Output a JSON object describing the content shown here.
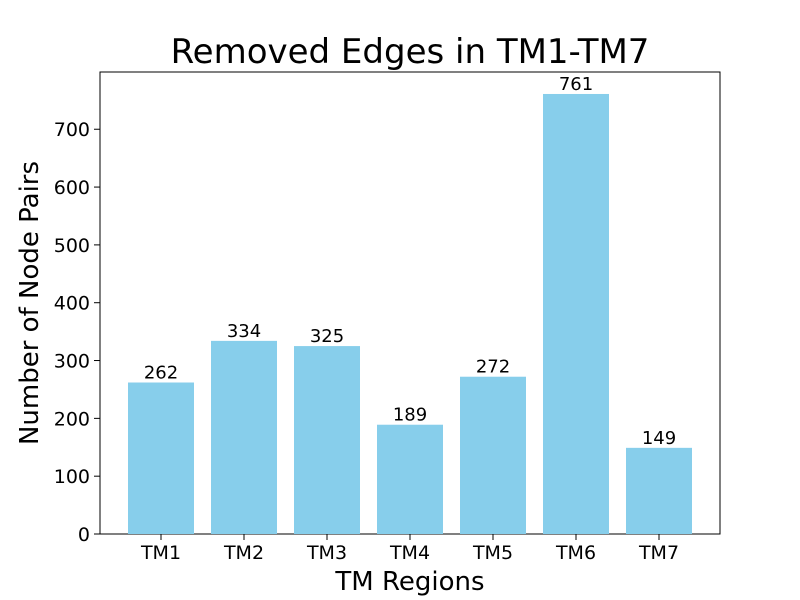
{
  "chart_data": {
    "type": "bar",
    "title": "Removed Edges in TM1-TM7",
    "xlabel": "TM Regions",
    "ylabel": "Number of Node Pairs",
    "categories": [
      "TM1",
      "TM2",
      "TM3",
      "TM4",
      "TM5",
      "TM6",
      "TM7"
    ],
    "values": [
      262,
      334,
      325,
      189,
      272,
      761,
      149
    ],
    "data_labels": [
      "262",
      "334",
      "325",
      "189",
      "272",
      "761",
      "149"
    ],
    "ylim": [
      0,
      799
    ],
    "yticks": [
      0,
      100,
      200,
      300,
      400,
      500,
      600,
      700
    ],
    "ytick_labels": [
      "0",
      "100",
      "200",
      "300",
      "400",
      "500",
      "600",
      "700"
    ],
    "grid": false,
    "bar_color": "#87ceeb"
  }
}
